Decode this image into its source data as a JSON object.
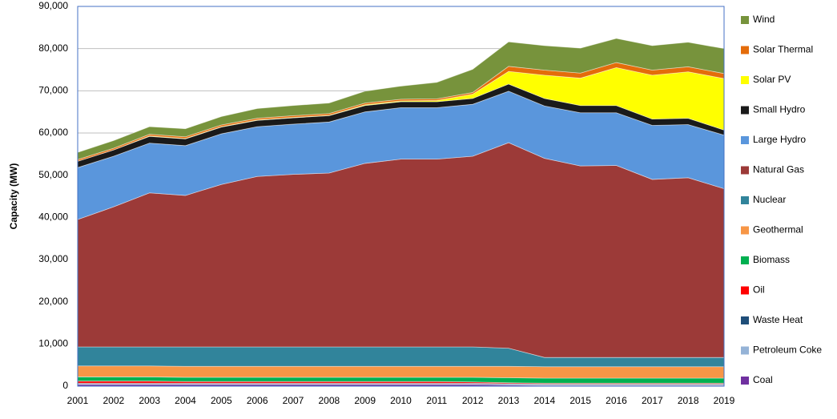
{
  "chart_data": {
    "type": "stacked-area",
    "y_label": "Capacity (MW)",
    "categories": [
      "2001",
      "2002",
      "2003",
      "2004",
      "2005",
      "2006",
      "2007",
      "2008",
      "2009",
      "2010",
      "2011",
      "2012",
      "2013",
      "2014",
      "2015",
      "2016",
      "2017",
      "2018",
      "2019"
    ],
    "ylim": [
      0,
      90000
    ],
    "yticks": [
      0,
      {
        "value": 10000,
        "label": "10,000"
      },
      {
        "value": 20000,
        "label": "20,000"
      },
      {
        "value": 30000,
        "label": "30,000"
      },
      {
        "value": 40000,
        "label": "40,000"
      },
      {
        "value": 50000,
        "label": "50,000"
      },
      {
        "value": 60000,
        "label": "60,000"
      },
      {
        "value": 70000,
        "label": "70,000"
      },
      {
        "value": 80000,
        "label": "80,000"
      },
      {
        "value": 90000,
        "label": "90,000"
      }
    ],
    "grid": true,
    "series": [
      {
        "name": "Coal",
        "color": "#7030a0",
        "values": [
          400,
          400,
          400,
          400,
          400,
          400,
          400,
          400,
          400,
          400,
          400,
          400,
          300,
          200,
          200,
          200,
          200,
          200,
          200
        ]
      },
      {
        "name": "Petroleum Coke",
        "color": "#95b3d7",
        "values": [
          100,
          100,
          100,
          100,
          100,
          100,
          100,
          100,
          100,
          100,
          100,
          100,
          100,
          100,
          100,
          100,
          100,
          100,
          100
        ]
      },
      {
        "name": "Waste Heat",
        "color": "#1f4e79",
        "values": [
          200,
          200,
          200,
          200,
          200,
          200,
          200,
          200,
          200,
          200,
          200,
          200,
          200,
          200,
          200,
          200,
          200,
          200,
          200
        ]
      },
      {
        "name": "Oil",
        "color": "#ff0000",
        "values": [
          500,
          500,
          500,
          400,
          400,
          400,
          400,
          400,
          400,
          400,
          400,
          300,
          200,
          200,
          200,
          200,
          200,
          200,
          200
        ]
      },
      {
        "name": "Biomass",
        "color": "#00b050",
        "values": [
          1000,
          1000,
          1000,
          1000,
          1000,
          1000,
          1000,
          1000,
          1000,
          1000,
          1000,
          1100,
          1200,
          1200,
          1200,
          1200,
          1200,
          1200,
          1200
        ]
      },
      {
        "name": "Geothermal",
        "color": "#f79646",
        "values": [
          2600,
          2600,
          2600,
          2600,
          2600,
          2600,
          2600,
          2600,
          2600,
          2600,
          2600,
          2600,
          2700,
          2700,
          2700,
          2700,
          2700,
          2700,
          2700
        ]
      },
      {
        "name": "Nuclear",
        "color": "#31849b",
        "values": [
          4500,
          4500,
          4500,
          4600,
          4600,
          4600,
          4600,
          4600,
          4600,
          4600,
          4600,
          4600,
          4300,
          2200,
          2200,
          2200,
          2200,
          2200,
          2200
        ]
      },
      {
        "name": "Natural Gas",
        "color": "#9c3a38",
        "values": [
          30200,
          33200,
          36500,
          35900,
          38500,
          40400,
          40900,
          41200,
          43500,
          44500,
          44500,
          45200,
          48700,
          47200,
          45400,
          45500,
          42200,
          42600,
          40000
        ]
      },
      {
        "name": "Large Hydro",
        "color": "#5a96dc",
        "values": [
          12300,
          12000,
          11800,
          11800,
          12000,
          11800,
          11900,
          12100,
          12200,
          12200,
          12200,
          12300,
          12200,
          12400,
          12600,
          12500,
          12800,
          12600,
          12700
        ]
      },
      {
        "name": "Small Hydro",
        "color": "#1a1a1a",
        "values": [
          1500,
          1500,
          1600,
          1600,
          1600,
          1500,
          1500,
          1500,
          1500,
          1400,
          1400,
          1400,
          1700,
          1800,
          1700,
          1700,
          1500,
          1500,
          1200
        ]
      },
      {
        "name": "Solar PV",
        "color": "#ffff00",
        "values": [
          0,
          0,
          100,
          100,
          100,
          100,
          100,
          100,
          200,
          200,
          300,
          1000,
          3000,
          5500,
          6500,
          9000,
          10400,
          11000,
          12200
        ]
      },
      {
        "name": "Solar Thermal",
        "color": "#e46c0a",
        "values": [
          400,
          400,
          400,
          400,
          400,
          400,
          400,
          400,
          400,
          400,
          400,
          400,
          1200,
          1200,
          1200,
          1200,
          1200,
          1200,
          1200
        ]
      },
      {
        "name": "Wind",
        "color": "#77933c",
        "values": [
          1700,
          1800,
          1800,
          1900,
          2000,
          2300,
          2400,
          2500,
          2800,
          3100,
          3900,
          5500,
          5800,
          5800,
          5900,
          5700,
          5800,
          5800,
          5900
        ]
      }
    ]
  }
}
